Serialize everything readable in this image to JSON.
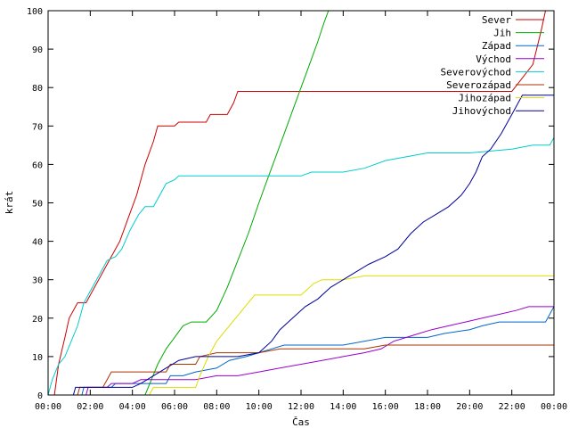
{
  "chart_data": {
    "type": "line",
    "title": "",
    "xlabel": "Čas",
    "ylabel": "krát",
    "xlim": [
      0,
      24
    ],
    "ylim": [
      0,
      100
    ],
    "grid": false,
    "legend_position": "top-right",
    "x_ticks": [
      "00:00",
      "02:00",
      "04:00",
      "06:00",
      "08:00",
      "10:00",
      "12:00",
      "14:00",
      "16:00",
      "18:00",
      "20:00",
      "22:00",
      "00:00"
    ],
    "y_ticks": [
      "0",
      "10",
      "20",
      "30",
      "40",
      "50",
      "60",
      "70",
      "80",
      "90",
      "100"
    ],
    "series": [
      {
        "name": "Sever",
        "color": "#cc0000",
        "points": [
          [
            0,
            0
          ],
          [
            0.3,
            0
          ],
          [
            0.5,
            8
          ],
          [
            0.8,
            15
          ],
          [
            1.0,
            20
          ],
          [
            1.4,
            24
          ],
          [
            1.8,
            24
          ],
          [
            2.2,
            28
          ],
          [
            2.6,
            32
          ],
          [
            3.0,
            36
          ],
          [
            3.4,
            40
          ],
          [
            3.8,
            46
          ],
          [
            4.2,
            52
          ],
          [
            4.6,
            60
          ],
          [
            5.0,
            66
          ],
          [
            5.2,
            70
          ],
          [
            6.0,
            70
          ],
          [
            6.2,
            71
          ],
          [
            7.5,
            71
          ],
          [
            7.7,
            73
          ],
          [
            8.5,
            73
          ],
          [
            8.8,
            76
          ],
          [
            9.0,
            79
          ],
          [
            16.0,
            79
          ],
          [
            20.0,
            79
          ],
          [
            22.0,
            79
          ],
          [
            23.0,
            86
          ],
          [
            23.4,
            95
          ],
          [
            23.6,
            100
          ]
        ]
      },
      {
        "name": "Jih",
        "color": "#00aa00",
        "points": [
          [
            0,
            0
          ],
          [
            4.6,
            0
          ],
          [
            4.9,
            4
          ],
          [
            5.2,
            8
          ],
          [
            5.6,
            12
          ],
          [
            6.0,
            15
          ],
          [
            6.4,
            18
          ],
          [
            6.8,
            19
          ],
          [
            7.5,
            19
          ],
          [
            8.0,
            22
          ],
          [
            8.5,
            28
          ],
          [
            9.0,
            35
          ],
          [
            9.5,
            42
          ],
          [
            10.0,
            50
          ],
          [
            10.4,
            56
          ],
          [
            10.8,
            62
          ],
          [
            11.2,
            68
          ],
          [
            11.6,
            74
          ],
          [
            12.0,
            80
          ],
          [
            12.4,
            86
          ],
          [
            12.8,
            92
          ],
          [
            13.1,
            97
          ],
          [
            13.3,
            100
          ]
        ]
      },
      {
        "name": "Západ",
        "color": "#0066cc",
        "points": [
          [
            0,
            0
          ],
          [
            1.6,
            0
          ],
          [
            1.7,
            2
          ],
          [
            3.0,
            2
          ],
          [
            3.2,
            3
          ],
          [
            5.6,
            3
          ],
          [
            5.8,
            5
          ],
          [
            6.4,
            5
          ],
          [
            7.0,
            6
          ],
          [
            8.0,
            7
          ],
          [
            8.6,
            9
          ],
          [
            9.4,
            10
          ],
          [
            10.0,
            11
          ],
          [
            10.6,
            12
          ],
          [
            11.2,
            13
          ],
          [
            13.4,
            13
          ],
          [
            14.0,
            13
          ],
          [
            16.0,
            15
          ],
          [
            18.0,
            15
          ],
          [
            18.8,
            16
          ],
          [
            20.0,
            17
          ],
          [
            20.6,
            18
          ],
          [
            21.4,
            19
          ],
          [
            23.6,
            19
          ],
          [
            24,
            23
          ]
        ]
      },
      {
        "name": "Východ",
        "color": "#9900cc",
        "points": [
          [
            0,
            0
          ],
          [
            1.8,
            0
          ],
          [
            1.9,
            2
          ],
          [
            2.8,
            2
          ],
          [
            3.0,
            3
          ],
          [
            4.0,
            3
          ],
          [
            4.4,
            4
          ],
          [
            5.8,
            4
          ],
          [
            6.2,
            4
          ],
          [
            7.0,
            4
          ],
          [
            8.0,
            5
          ],
          [
            9.0,
            5
          ],
          [
            10.0,
            6
          ],
          [
            11.0,
            7
          ],
          [
            12.0,
            8
          ],
          [
            13.0,
            9
          ],
          [
            14.0,
            10
          ],
          [
            15.0,
            11
          ],
          [
            15.8,
            12
          ],
          [
            16.4,
            14
          ],
          [
            17.0,
            15
          ],
          [
            17.6,
            16
          ],
          [
            18.2,
            17
          ],
          [
            19.0,
            18
          ],
          [
            19.8,
            19
          ],
          [
            20.6,
            20
          ],
          [
            21.4,
            21
          ],
          [
            22.2,
            22
          ],
          [
            22.8,
            23
          ],
          [
            24,
            23
          ]
        ]
      },
      {
        "name": "Severovýchod",
        "color": "#00cccc",
        "points": [
          [
            0,
            0
          ],
          [
            0.2,
            4
          ],
          [
            0.5,
            8
          ],
          [
            0.8,
            10
          ],
          [
            1.1,
            14
          ],
          [
            1.4,
            18
          ],
          [
            1.7,
            24
          ],
          [
            2.1,
            28
          ],
          [
            2.5,
            32
          ],
          [
            2.8,
            35
          ],
          [
            3.2,
            36
          ],
          [
            3.5,
            38
          ],
          [
            3.9,
            43
          ],
          [
            4.3,
            47
          ],
          [
            4.6,
            49
          ],
          [
            5.0,
            49
          ],
          [
            5.3,
            52
          ],
          [
            5.6,
            55
          ],
          [
            6.0,
            56
          ],
          [
            6.2,
            57
          ],
          [
            9.5,
            57
          ],
          [
            12.0,
            57
          ],
          [
            12.5,
            58
          ],
          [
            14.0,
            58
          ],
          [
            15.0,
            59
          ],
          [
            16.0,
            61
          ],
          [
            18.0,
            63
          ],
          [
            20.0,
            63
          ],
          [
            22.0,
            64
          ],
          [
            23.0,
            65
          ],
          [
            23.8,
            65
          ],
          [
            24,
            67
          ]
        ]
      },
      {
        "name": "Severozápad",
        "color": "#aa3300",
        "points": [
          [
            0,
            0
          ],
          [
            1.4,
            0
          ],
          [
            1.5,
            2
          ],
          [
            2.6,
            2
          ],
          [
            2.8,
            4
          ],
          [
            3.0,
            6
          ],
          [
            5.6,
            6
          ],
          [
            5.8,
            8
          ],
          [
            7.0,
            8
          ],
          [
            7.2,
            10
          ],
          [
            8.0,
            11
          ],
          [
            9.0,
            11
          ],
          [
            10.0,
            11
          ],
          [
            11.0,
            12
          ],
          [
            14.0,
            12
          ],
          [
            15.0,
            12
          ],
          [
            16.0,
            13
          ],
          [
            24,
            13
          ]
        ]
      },
      {
        "name": "Jihozápad",
        "color": "#dddd00",
        "points": [
          [
            0,
            0
          ],
          [
            4.8,
            0
          ],
          [
            5.0,
            2
          ],
          [
            7.0,
            2
          ],
          [
            7.2,
            5
          ],
          [
            7.6,
            10
          ],
          [
            8.0,
            14
          ],
          [
            8.6,
            18
          ],
          [
            9.2,
            22
          ],
          [
            9.8,
            26
          ],
          [
            12.0,
            26
          ],
          [
            12.6,
            29
          ],
          [
            13.0,
            30
          ],
          [
            14.0,
            30
          ],
          [
            15.0,
            31
          ],
          [
            24,
            31
          ]
        ]
      },
      {
        "name": "Jihovýchod",
        "color": "#000099",
        "points": [
          [
            0,
            0
          ],
          [
            1.2,
            0
          ],
          [
            1.3,
            2
          ],
          [
            4.0,
            2
          ],
          [
            4.4,
            3
          ],
          [
            5.0,
            5
          ],
          [
            5.6,
            7
          ],
          [
            6.2,
            9
          ],
          [
            7.0,
            10
          ],
          [
            8.0,
            10
          ],
          [
            9.0,
            10
          ],
          [
            10.0,
            11
          ],
          [
            10.6,
            14
          ],
          [
            11.0,
            17
          ],
          [
            11.6,
            20
          ],
          [
            12.2,
            23
          ],
          [
            12.8,
            25
          ],
          [
            13.4,
            28
          ],
          [
            14.0,
            30
          ],
          [
            14.6,
            32
          ],
          [
            15.2,
            34
          ],
          [
            16.0,
            36
          ],
          [
            16.6,
            38
          ],
          [
            17.2,
            42
          ],
          [
            17.8,
            45
          ],
          [
            18.4,
            47
          ],
          [
            19.0,
            49
          ],
          [
            19.6,
            52
          ],
          [
            20.0,
            55
          ],
          [
            20.3,
            58
          ],
          [
            20.6,
            62
          ],
          [
            21.0,
            64
          ],
          [
            21.5,
            68
          ],
          [
            22.0,
            73
          ],
          [
            22.5,
            78
          ],
          [
            24,
            78
          ]
        ]
      }
    ]
  }
}
